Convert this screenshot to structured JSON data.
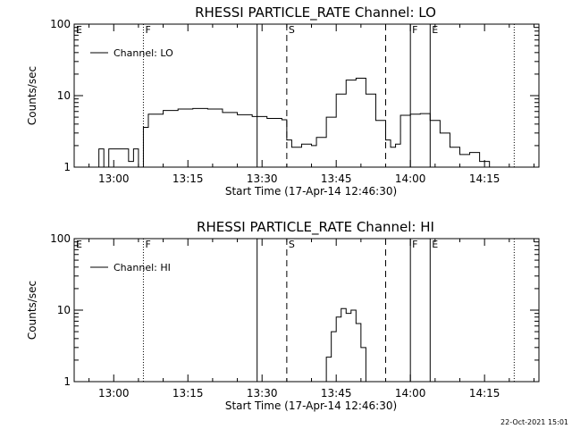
{
  "footer": {
    "date": "22-Oct-2021 15:01"
  },
  "chart_data": [
    {
      "type": "line",
      "title": "RHESSI PARTICLE_RATE Channel: LO",
      "xlabel": "Start Time (17-Apr-14 12:46:30)",
      "ylabel": "Counts/sec",
      "xlim": [
        "12:52",
        "14:26"
      ],
      "ylim": [
        1,
        100
      ],
      "yscale": "log",
      "xticks": [
        "13:00",
        "13:15",
        "13:30",
        "13:45",
        "14:00",
        "14:15"
      ],
      "yticks": [
        "1",
        "10",
        "100"
      ],
      "legend": {
        "label": "Channel: LO",
        "placement": "top-left"
      },
      "markers": [
        {
          "label": "E",
          "time": "12:52",
          "style": "dotted"
        },
        {
          "label": "F",
          "time": "13:06",
          "style": "dotted"
        },
        {
          "label": "",
          "time": "13:29",
          "style": "solid"
        },
        {
          "label": "S",
          "time": "13:35",
          "style": "dashed"
        },
        {
          "label": "",
          "time": "13:55",
          "style": "dashed"
        },
        {
          "label": "F",
          "time": "14:00",
          "style": "solid"
        },
        {
          "label": "E",
          "time": "14:04",
          "style": "solid"
        },
        {
          "label": "",
          "time": "14:21",
          "style": "dotted"
        }
      ],
      "series": [
        {
          "name": "Channel: LO",
          "points": [
            [
              "12:56",
              1
            ],
            [
              "12:57",
              1.8
            ],
            [
              "12:58",
              1
            ],
            [
              "12:59",
              1.8
            ],
            [
              "13:00",
              1.8
            ],
            [
              "13:01",
              1.8
            ],
            [
              "13:02",
              1.8
            ],
            [
              "13:03",
              1.2
            ],
            [
              "13:04",
              1.8
            ],
            [
              "13:05",
              1
            ],
            [
              "13:06",
              3.6
            ],
            [
              "13:07",
              5.5
            ],
            [
              "13:10",
              6.2
            ],
            [
              "13:13",
              6.5
            ],
            [
              "13:16",
              6.6
            ],
            [
              "13:19",
              6.5
            ],
            [
              "13:22",
              5.8
            ],
            [
              "13:25",
              5.4
            ],
            [
              "13:28",
              5.1
            ],
            [
              "13:31",
              4.8
            ],
            [
              "13:34",
              4.6
            ],
            [
              "13:35",
              2.4
            ],
            [
              "13:36",
              1.9
            ],
            [
              "13:38",
              2.1
            ],
            [
              "13:40",
              2.0
            ],
            [
              "13:41",
              2.6
            ],
            [
              "13:43",
              5.0
            ],
            [
              "13:45",
              10.5
            ],
            [
              "13:47",
              16.5
            ],
            [
              "13:49",
              17.5
            ],
            [
              "13:51",
              10.5
            ],
            [
              "13:53",
              4.5
            ],
            [
              "13:55",
              2.4
            ],
            [
              "13:56",
              1.9
            ],
            [
              "13:57",
              2.1
            ],
            [
              "13:58",
              5.3
            ],
            [
              "14:00",
              5.5
            ],
            [
              "14:02",
              5.6
            ],
            [
              "14:04",
              4.5
            ],
            [
              "14:06",
              3.0
            ],
            [
              "14:08",
              1.9
            ],
            [
              "14:10",
              1.5
            ],
            [
              "14:12",
              1.6
            ],
            [
              "14:14",
              1.2
            ],
            [
              "14:16",
              1
            ]
          ]
        }
      ]
    },
    {
      "type": "line",
      "title": "RHESSI PARTICLE_RATE Channel: HI",
      "xlabel": "Start Time (17-Apr-14 12:46:30)",
      "ylabel": "Counts/sec",
      "xlim": [
        "12:52",
        "14:26"
      ],
      "ylim": [
        1,
        100
      ],
      "yscale": "log",
      "xticks": [
        "13:00",
        "13:15",
        "13:30",
        "13:45",
        "14:00",
        "14:15"
      ],
      "yticks": [
        "1",
        "10",
        "100"
      ],
      "legend": {
        "label": "Channel: HI",
        "placement": "top-left"
      },
      "markers": [
        {
          "label": "E",
          "time": "12:52",
          "style": "dotted"
        },
        {
          "label": "F",
          "time": "13:06",
          "style": "dotted"
        },
        {
          "label": "",
          "time": "13:29",
          "style": "solid"
        },
        {
          "label": "S",
          "time": "13:35",
          "style": "dashed"
        },
        {
          "label": "",
          "time": "13:55",
          "style": "dashed"
        },
        {
          "label": "F",
          "time": "14:00",
          "style": "solid"
        },
        {
          "label": "E",
          "time": "14:04",
          "style": "solid"
        },
        {
          "label": "",
          "time": "14:21",
          "style": "dotted"
        }
      ],
      "series": [
        {
          "name": "Channel: HI",
          "points": [
            [
              "13:42",
              1
            ],
            [
              "13:43",
              2.2
            ],
            [
              "13:44",
              5.0
            ],
            [
              "13:45",
              8.0
            ],
            [
              "13:46",
              10.5
            ],
            [
              "13:47",
              9.0
            ],
            [
              "13:48",
              10.0
            ],
            [
              "13:49",
              6.5
            ],
            [
              "13:50",
              3.0
            ],
            [
              "13:51",
              1
            ]
          ]
        }
      ]
    }
  ]
}
